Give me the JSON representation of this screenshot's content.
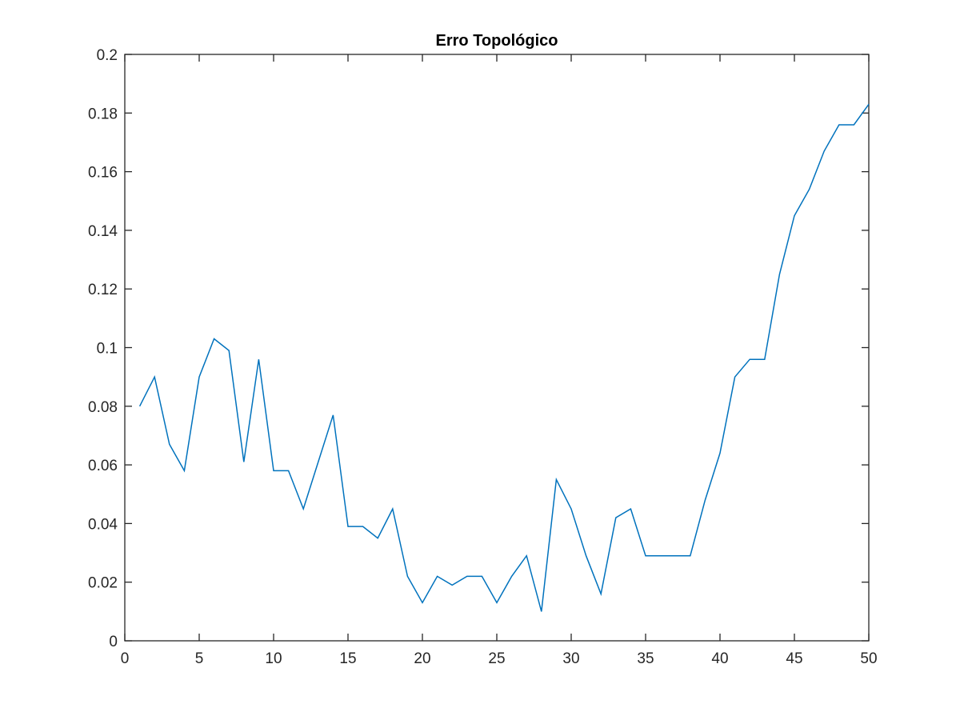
{
  "chart_data": {
    "type": "line",
    "title": "Erro Topológico",
    "xlabel": "",
    "ylabel": "",
    "xlim": [
      0,
      50
    ],
    "ylim": [
      0,
      0.2
    ],
    "xticks": [
      0,
      5,
      10,
      15,
      20,
      25,
      30,
      35,
      40,
      45,
      50
    ],
    "yticks": [
      0,
      0.02,
      0.04,
      0.06,
      0.08,
      0.1,
      0.12,
      0.14,
      0.16,
      0.18,
      0.2
    ],
    "xtick_labels": [
      "0",
      "5",
      "10",
      "15",
      "20",
      "25",
      "30",
      "35",
      "40",
      "45",
      "50"
    ],
    "ytick_labels": [
      "0",
      "0.02",
      "0.04",
      "0.06",
      "0.08",
      "0.1",
      "0.12",
      "0.14",
      "0.16",
      "0.18",
      "0.2"
    ],
    "grid": false,
    "legend": "none",
    "series": [
      {
        "color": "#0072bd",
        "x": [
          1,
          2,
          3,
          4,
          5,
          6,
          7,
          8,
          9,
          10,
          11,
          12,
          13,
          14,
          15,
          16,
          17,
          18,
          19,
          20,
          21,
          22,
          23,
          24,
          25,
          26,
          27,
          28,
          29,
          30,
          31,
          32,
          33,
          34,
          35,
          36,
          37,
          38,
          39,
          40,
          41,
          42,
          43,
          44,
          45,
          46,
          47,
          48,
          49,
          50
        ],
        "y": [
          0.08,
          0.09,
          0.067,
          0.058,
          0.09,
          0.103,
          0.099,
          0.061,
          0.096,
          0.058,
          0.058,
          0.045,
          0.061,
          0.077,
          0.039,
          0.039,
          0.035,
          0.045,
          0.022,
          0.013,
          0.022,
          0.019,
          0.022,
          0.022,
          0.013,
          0.022,
          0.029,
          0.01,
          0.055,
          0.045,
          0.029,
          0.016,
          0.042,
          0.045,
          0.029,
          0.029,
          0.029,
          0.029,
          0.048,
          0.064,
          0.09,
          0.096,
          0.096,
          0.125,
          0.145,
          0.154,
          0.167,
          0.176,
          0.176,
          0.183
        ]
      }
    ]
  }
}
